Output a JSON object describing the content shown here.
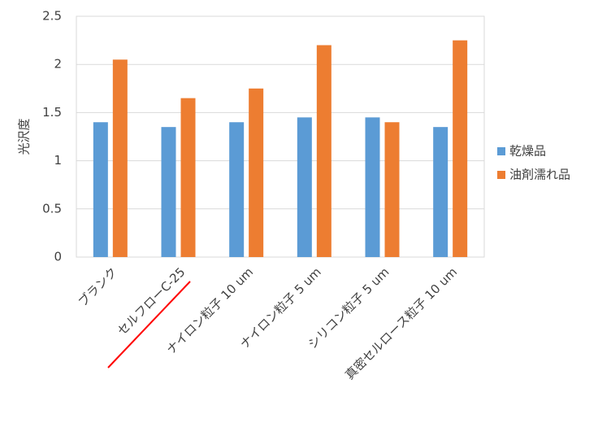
{
  "chart_data": {
    "type": "bar",
    "y_label": "光沢度",
    "categories": [
      "ブランク",
      "セルフローC-25",
      "ナイロン粒子 10 um",
      "ナイロン粒子 5 um",
      "シリコン粒子 5 um",
      "真密セルロース粒子 10 um"
    ],
    "series": [
      {
        "name": "乾燥品",
        "color": "#5b9bd5",
        "values": [
          1.4,
          1.35,
          1.4,
          1.45,
          1.45,
          1.35
        ]
      },
      {
        "name": "油剤濡れ品",
        "color": "#ed7d31",
        "values": [
          2.05,
          1.65,
          1.75,
          2.2,
          1.4,
          2.25
        ]
      }
    ],
    "ylim": [
      0,
      2.5
    ],
    "yticks": [
      0,
      0.5,
      1,
      1.5,
      2,
      2.5
    ],
    "grid": true,
    "legend": "right"
  }
}
